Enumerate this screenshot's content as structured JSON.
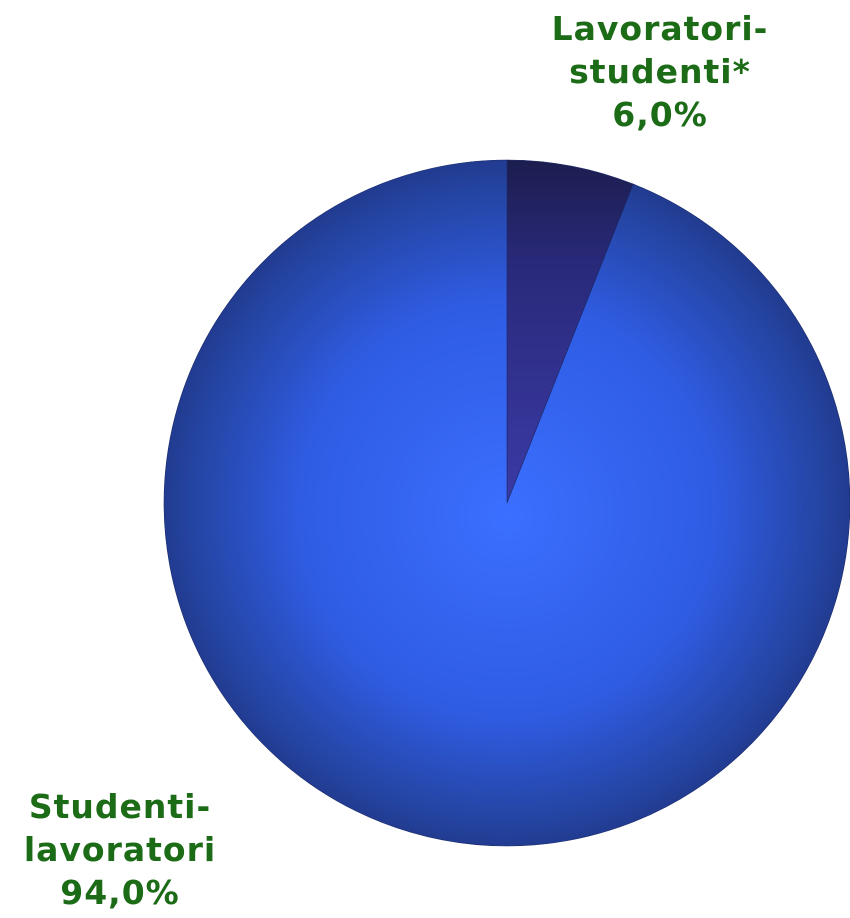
{
  "chart_data": {
    "type": "pie",
    "title": "",
    "categories": [
      "Lavoratori-studenti*",
      "Studenti-lavoratori"
    ],
    "values": [
      6.0,
      94.0
    ],
    "labels": [
      {
        "lines": [
          "Lavoratori-",
          "studenti*",
          "6,0%"
        ]
      },
      {
        "lines": [
          "Studenti-",
          "lavoratori",
          "94,0%"
        ]
      }
    ],
    "colors": [
      "#2a2f86",
      "#3466ee"
    ],
    "start_angle": "12 o'clock",
    "direction": "clockwise",
    "legend": "none"
  }
}
